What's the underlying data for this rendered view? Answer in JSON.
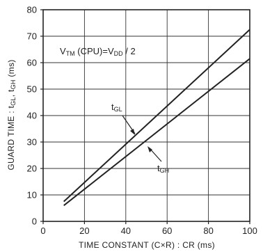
{
  "chart_data": {
    "type": "line",
    "xlabel": "TIME CONSTANT (C×R) : CR (ms)",
    "ylabel_parts": [
      "GUARD TIME : t",
      "GL",
      ", t",
      "GH",
      " (ms)"
    ],
    "xlim": [
      0,
      100
    ],
    "ylim": [
      0,
      80
    ],
    "x_ticks": [
      0,
      20,
      40,
      60,
      80,
      100
    ],
    "y_ticks": [
      0,
      10,
      20,
      30,
      40,
      50,
      60,
      70,
      80
    ],
    "grid": true,
    "annotation": {
      "parts": [
        "V",
        "TM",
        " (CPU)=V",
        "DD",
        " / 2"
      ]
    },
    "series": [
      {
        "name_parts": [
          "t",
          "GL"
        ],
        "x": [
          10,
          100
        ],
        "values": [
          7.5,
          72.5
        ]
      },
      {
        "name_parts": [
          "t",
          "GH"
        ],
        "x": [
          10,
          100
        ],
        "values": [
          6,
          61.5
        ]
      }
    ]
  }
}
